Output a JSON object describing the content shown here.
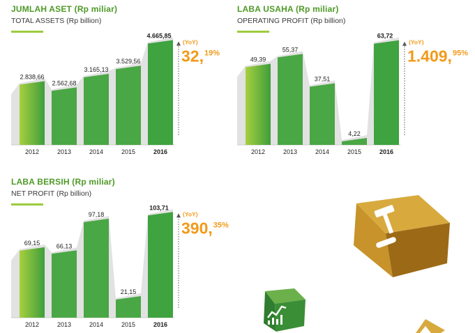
{
  "chart_data": [
    {
      "type": "bar",
      "title": "JUMLAH ASET (Rp miliar)",
      "subtitle": "TOTAL ASSETS (Rp billion)",
      "categories": [
        "2012",
        "2013",
        "2014",
        "2015",
        "2016"
      ],
      "values": [
        2838.66,
        2562.68,
        3165.13,
        3529.56,
        4665.85
      ],
      "value_labels": [
        "2.838,66",
        "2.562,68",
        "3.165,13",
        "3.529,56",
        "4.665,85"
      ],
      "yoy_label": "(YoY)",
      "yoy_int": "32,",
      "yoy_dec": "19%",
      "ylim": [
        0,
        4900
      ]
    },
    {
      "type": "bar",
      "title": "LABA USAHA (Rp miliar)",
      "subtitle": "OPERATING PROFIT (Rp billion)",
      "categories": [
        "2012",
        "2013",
        "2014",
        "2015",
        "2016"
      ],
      "values": [
        49.39,
        55.37,
        37.51,
        4.22,
        63.72
      ],
      "value_labels": [
        "49,39",
        "55,37",
        "37,51",
        "4,22",
        "63,72"
      ],
      "yoy_label": "(YoY)",
      "yoy_int": "1.409,",
      "yoy_dec": "95%",
      "ylim": [
        0,
        67
      ]
    },
    {
      "type": "bar",
      "title": "LABA BERSIH (Rp miliar)",
      "subtitle": "NET PROFIT (Rp billion)",
      "categories": [
        "2012",
        "2013",
        "2014",
        "2015",
        "2016"
      ],
      "values": [
        69.15,
        66.13,
        97.18,
        21.15,
        103.71
      ],
      "value_labels": [
        "69,15",
        "66,13",
        "97,18",
        "21,15",
        "103,71"
      ],
      "yoy_label": "(YoY)",
      "yoy_int": "390,",
      "yoy_dec": "35%",
      "ylim": [
        0,
        108
      ]
    }
  ],
  "colors": {
    "title": "#4e9a27",
    "yoy": "#f29a1a",
    "bar_front_light": "#a8cf3f",
    "bar_front_dark": "#3e9e3c",
    "bar_shadow": "#e2e2e2"
  },
  "decorations": {
    "gavel_cube_icon": "gavel-icon",
    "growth_cube_icon": "chart-growth-icon"
  }
}
